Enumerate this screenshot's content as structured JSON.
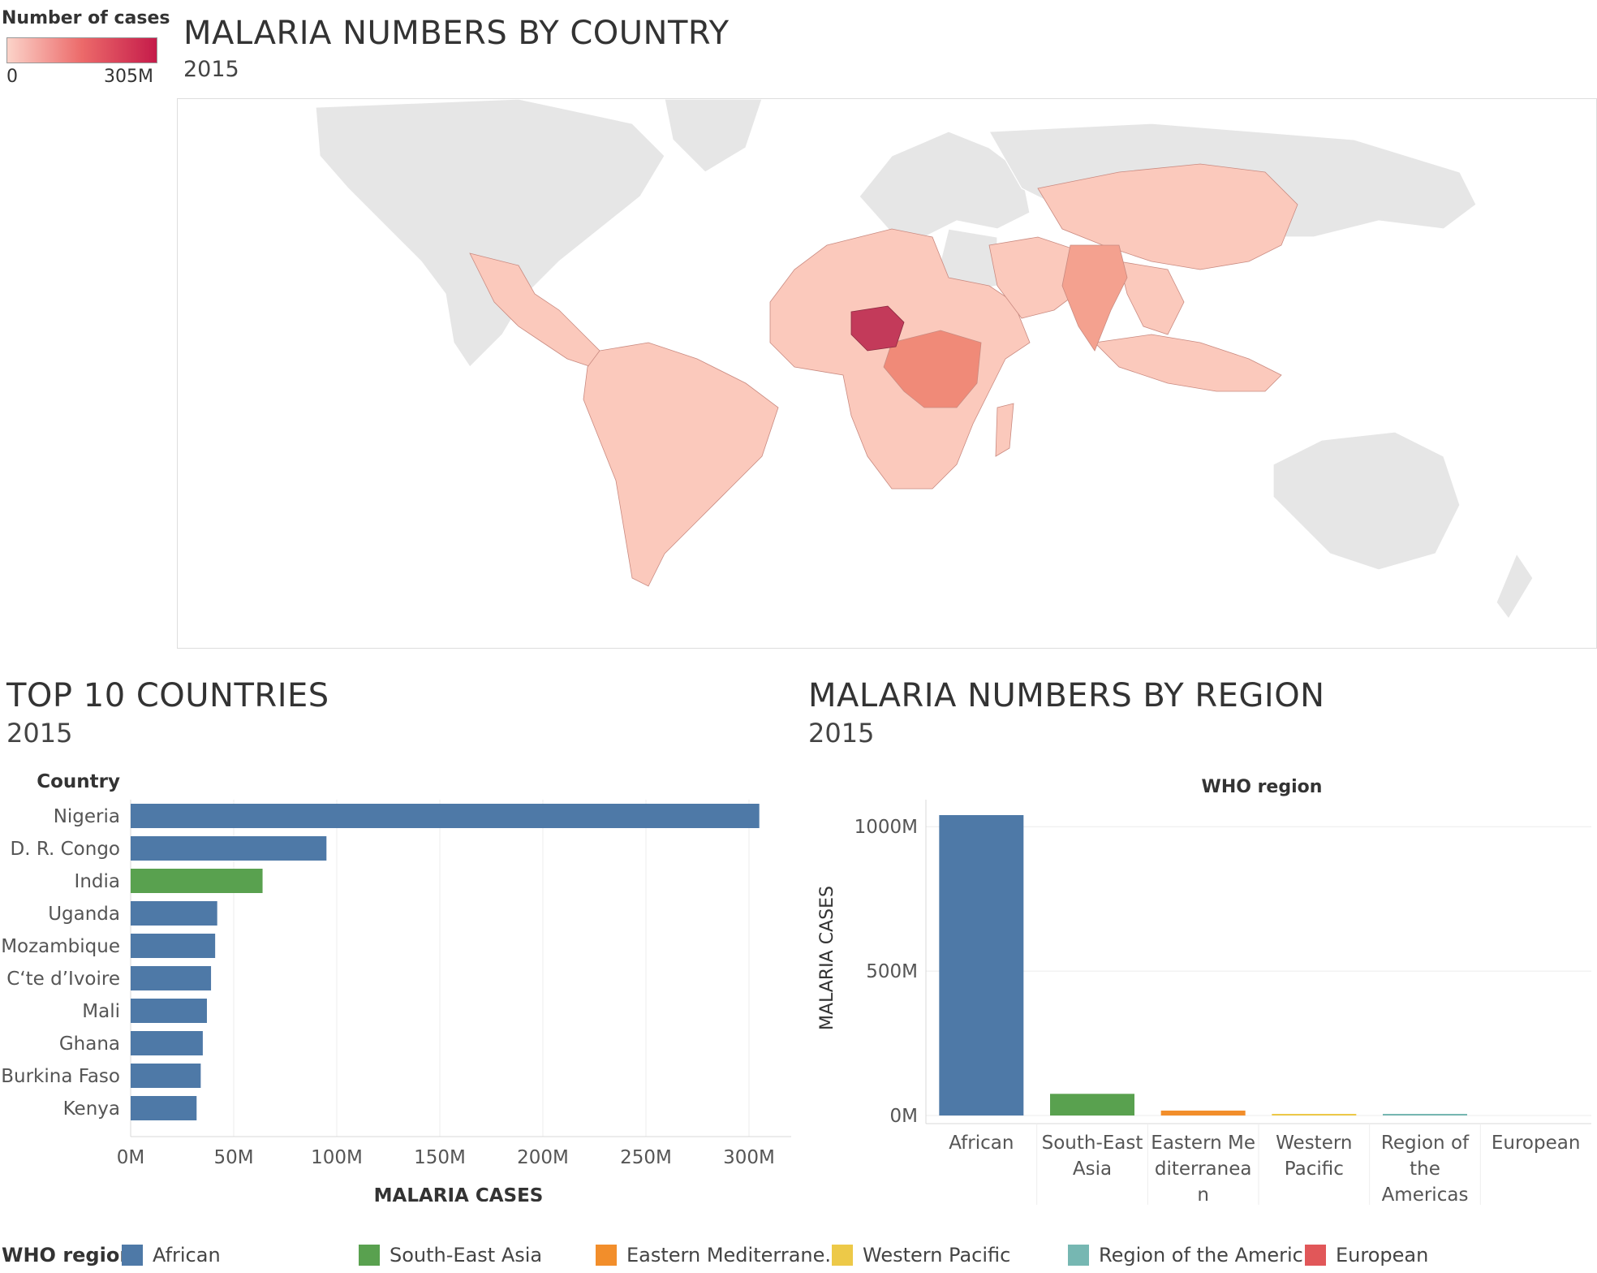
{
  "colors": {
    "african": "#4e79a7",
    "south_east_asia": "#59a14f",
    "eastern_mediterranean": "#f28e2b",
    "western_pacific": "#edc948",
    "americas": "#76b7b2",
    "european": "#e15759",
    "land_no_data": "#e6e6e6",
    "scale_low": "#fbd3c9",
    "scale_high": "#c51b4a"
  },
  "map": {
    "legend_title": "Number of cases",
    "legend_min": "0",
    "legend_max": "305M",
    "title": "MALARIA NUMBERS BY COUNTRY",
    "subtitle": "2015"
  },
  "top10": {
    "title": "TOP 10 COUNTRIES",
    "subtitle": "2015"
  },
  "region": {
    "title": "MALARIA NUMBERS BY REGION",
    "subtitle": "2015"
  },
  "bottom_legend": {
    "title": "WHO region",
    "items": [
      {
        "label": "African",
        "color": "#4e79a7"
      },
      {
        "label": "South-East Asia",
        "color": "#59a14f"
      },
      {
        "label": "Eastern Mediterrane..",
        "color": "#f28e2b"
      },
      {
        "label": "Western Pacific",
        "color": "#edc948"
      },
      {
        "label": "Region of the Americ..",
        "color": "#76b7b2"
      },
      {
        "label": "European",
        "color": "#e15759"
      }
    ]
  },
  "chart_data": [
    {
      "type": "map",
      "title": "MALARIA NUMBERS BY COUNTRY",
      "subtitle": "2015",
      "legend_title": "Number of cases",
      "color_range": [
        "0",
        "305M"
      ],
      "highlighted_countries": [
        {
          "country": "Nigeria",
          "level": "highest"
        },
        {
          "country": "D. R. Congo",
          "level": "high"
        },
        {
          "country": "India",
          "level": "medium"
        }
      ]
    },
    {
      "type": "bar",
      "orientation": "horizontal",
      "title": "TOP 10 COUNTRIES",
      "subtitle": "2015",
      "ylabel": "Country",
      "xlabel": "MALARIA CASES",
      "xlim": [
        0,
        320
      ],
      "xticks": [
        "0M",
        "50M",
        "100M",
        "150M",
        "200M",
        "250M",
        "300M"
      ],
      "categories": [
        "Nigeria",
        "D. R. Congo",
        "India",
        "Uganda",
        "Mozambique",
        "Cʻte d’Ivoire",
        "Mali",
        "Ghana",
        "Burkina Faso",
        "Kenya"
      ],
      "values": [
        305,
        95,
        64,
        42,
        41,
        39,
        37,
        35,
        34,
        32
      ],
      "value_unit": "M",
      "bar_colors": [
        "#4e79a7",
        "#4e79a7",
        "#59a14f",
        "#4e79a7",
        "#4e79a7",
        "#4e79a7",
        "#4e79a7",
        "#4e79a7",
        "#4e79a7",
        "#4e79a7"
      ],
      "grid": true
    },
    {
      "type": "bar",
      "orientation": "vertical",
      "title": "MALARIA NUMBERS BY REGION",
      "subtitle": "2015",
      "header": "WHO region",
      "ylabel": "MALARIA CASES",
      "ylim": [
        0,
        1020
      ],
      "yticks": [
        "0M",
        "500M",
        "1000M"
      ],
      "categories": [
        "African",
        "South-East Asia",
        "Eastern Mediterranean",
        "Western Pacific",
        "Region of the Americas",
        "European"
      ],
      "category_lines": [
        [
          "African"
        ],
        [
          "South-East",
          "Asia"
        ],
        [
          "Eastern Me",
          "diterranea",
          "n"
        ],
        [
          "Western",
          "Pacific"
        ],
        [
          "Region of",
          "the",
          "Americas"
        ],
        [
          "European"
        ]
      ],
      "values": [
        1040,
        75,
        17,
        4,
        3,
        0
      ],
      "value_unit": "M",
      "bar_colors": [
        "#4e79a7",
        "#59a14f",
        "#f28e2b",
        "#edc948",
        "#76b7b2",
        "#e15759"
      ],
      "grid": true
    }
  ]
}
